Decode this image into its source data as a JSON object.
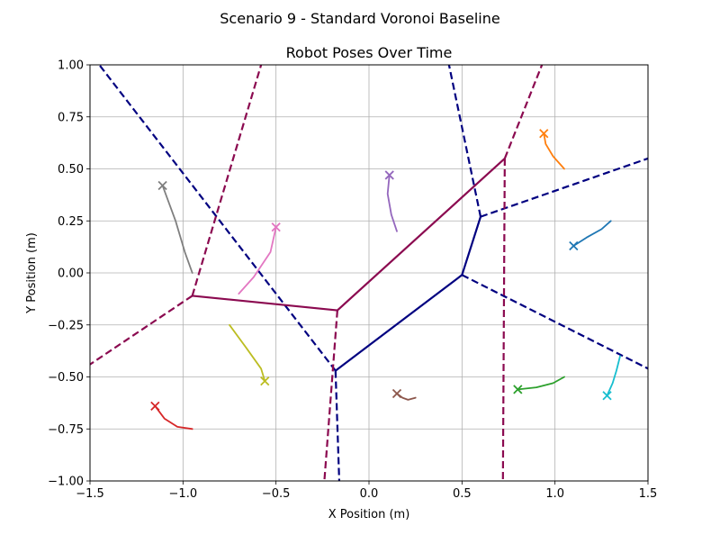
{
  "chart_data": {
    "type": "line",
    "suptitle": "Scenario 9 - Standard Voronoi Baseline",
    "title": "Robot Poses Over Time",
    "xlabel": "X Position (m)",
    "ylabel": "Y Position (m)",
    "xlim": [
      -1.5,
      1.5
    ],
    "ylim": [
      -1.0,
      1.0
    ],
    "xticks": [
      -1.5,
      -1.0,
      -0.5,
      0.0,
      0.5,
      1.0,
      1.5
    ],
    "xtick_labels": [
      "−1.5",
      "−1.0",
      "−0.5",
      "0.0",
      "0.5",
      "1.0",
      "1.5"
    ],
    "yticks": [
      -1.0,
      -0.75,
      -0.5,
      -0.25,
      0.0,
      0.25,
      0.5,
      0.75,
      1.0
    ],
    "ytick_labels": [
      "−1.00",
      "−0.75",
      "−0.50",
      "−0.25",
      "0.00",
      "0.25",
      "0.50",
      "0.75",
      "1.00"
    ],
    "grid": true,
    "voronoi": [
      {
        "color": "#000080",
        "solid": [
          [
            [
              -0.18,
              -0.47
            ],
            [
              0.5,
              -0.01
            ]
          ],
          [
            [
              0.5,
              -0.01
            ],
            [
              0.6,
              0.27
            ]
          ]
        ],
        "dashed": [
          [
            [
              -0.18,
              -0.47
            ],
            [
              -1.45,
              1.0
            ]
          ],
          [
            [
              -0.18,
              -0.47
            ],
            [
              -0.16,
              -1.0
            ]
          ],
          [
            [
              0.5,
              -0.01
            ],
            [
              1.5,
              -0.46
            ]
          ],
          [
            [
              0.6,
              0.27
            ],
            [
              1.5,
              0.55
            ]
          ],
          [
            [
              0.6,
              0.27
            ],
            [
              0.43,
              1.0
            ]
          ]
        ]
      },
      {
        "color": "#8b0a50",
        "solid": [
          [
            [
              -0.95,
              -0.11
            ],
            [
              -0.17,
              -0.18
            ]
          ],
          [
            [
              -0.17,
              -0.18
            ],
            [
              0.73,
              0.55
            ]
          ]
        ],
        "dashed": [
          [
            [
              -0.95,
              -0.11
            ],
            [
              -1.5,
              -0.44
            ]
          ],
          [
            [
              -0.95,
              -0.11
            ],
            [
              -0.58,
              1.0
            ]
          ],
          [
            [
              -0.17,
              -0.18
            ],
            [
              -0.24,
              -1.0
            ]
          ],
          [
            [
              0.73,
              0.55
            ],
            [
              0.93,
              1.0
            ]
          ],
          [
            [
              0.73,
              0.55
            ],
            [
              0.72,
              -1.0
            ]
          ]
        ]
      }
    ],
    "robots": [
      {
        "color": "#1f77b4",
        "path": [
          [
            1.3,
            0.25
          ],
          [
            1.25,
            0.21
          ],
          [
            1.17,
            0.17
          ],
          [
            1.1,
            0.13
          ]
        ]
      },
      {
        "color": "#ff7f0e",
        "path": [
          [
            1.05,
            0.5
          ],
          [
            0.99,
            0.56
          ],
          [
            0.95,
            0.62
          ],
          [
            0.94,
            0.67
          ]
        ]
      },
      {
        "color": "#2ca02c",
        "path": [
          [
            1.05,
            -0.5
          ],
          [
            0.99,
            -0.53
          ],
          [
            0.9,
            -0.55
          ],
          [
            0.8,
            -0.56
          ]
        ]
      },
      {
        "color": "#d62728",
        "path": [
          [
            -0.95,
            -0.75
          ],
          [
            -1.03,
            -0.74
          ],
          [
            -1.1,
            -0.7
          ],
          [
            -1.15,
            -0.64
          ]
        ]
      },
      {
        "color": "#9467bd",
        "path": [
          [
            0.15,
            0.2
          ],
          [
            0.12,
            0.28
          ],
          [
            0.1,
            0.38
          ],
          [
            0.11,
            0.47
          ]
        ]
      },
      {
        "color": "#8c564b",
        "path": [
          [
            0.25,
            -0.6
          ],
          [
            0.21,
            -0.61
          ],
          [
            0.18,
            -0.6
          ],
          [
            0.15,
            -0.58
          ]
        ]
      },
      {
        "color": "#e377c2",
        "path": [
          [
            -0.7,
            -0.1
          ],
          [
            -0.62,
            -0.02
          ],
          [
            -0.53,
            0.1
          ],
          [
            -0.5,
            0.22
          ]
        ]
      },
      {
        "color": "#7f7f7f",
        "path": [
          [
            -0.95,
            0.0
          ],
          [
            -0.99,
            0.1
          ],
          [
            -1.04,
            0.25
          ],
          [
            -1.11,
            0.42
          ]
        ]
      },
      {
        "color": "#bcbd22",
        "path": [
          [
            -0.75,
            -0.25
          ],
          [
            -0.66,
            -0.36
          ],
          [
            -0.58,
            -0.46
          ],
          [
            -0.56,
            -0.52
          ]
        ]
      },
      {
        "color": "#17becf",
        "path": [
          [
            1.35,
            -0.4
          ],
          [
            1.33,
            -0.47
          ],
          [
            1.31,
            -0.53
          ],
          [
            1.28,
            -0.59
          ]
        ]
      }
    ]
  }
}
